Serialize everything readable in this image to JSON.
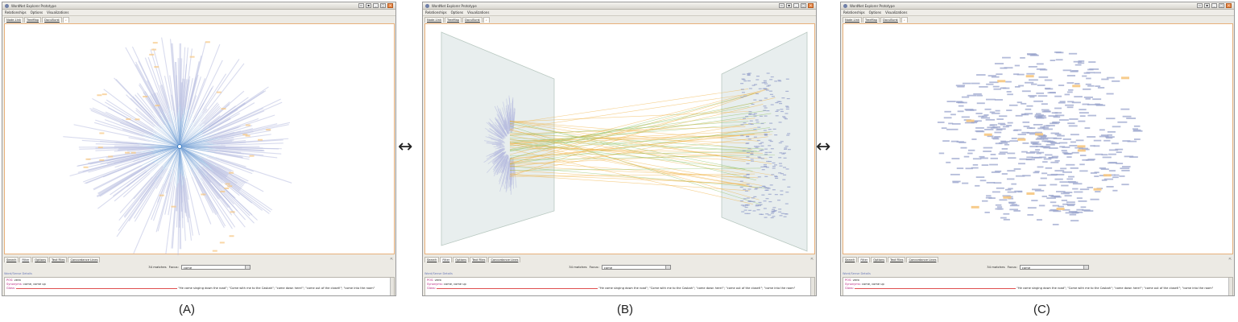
{
  "app_title": "WordNet Explorer Prototype",
  "menu": [
    "Relationships",
    "Options",
    "Visualizations"
  ],
  "view_tabs": [
    "Node-Link",
    "TreeMap",
    "DocuBurst"
  ],
  "bottom_tabs": [
    "Search",
    "Filter",
    "Options",
    "Text Files",
    "Concordance Lines"
  ],
  "filter": {
    "matches_text": "34 matches",
    "focus_label": "Focus:",
    "focus_value": "come"
  },
  "details_header": "Word/Sense Details",
  "details": {
    "pos_key": "POS:",
    "pos_val": "verb",
    "syn_key": "Synonyms:",
    "syn_val": "come, come up",
    "gloss_key": "Gloss:",
    "gloss_val": "\"He came singing down the road\"; \"Come with me to the Casbah\"; \"come down here!\"; \"come out of the closet!\"; \"come into the room\""
  },
  "transition_arrow": "↔",
  "captions": [
    "(A)",
    "(B)",
    "(C)"
  ],
  "colors": {
    "tree_edge": "#7fa8d8",
    "tree_label": "#b8bde0",
    "link_orange": "#f0b040",
    "link_green": "#8cc060",
    "plane_fill": "#d6e0e0",
    "highlight": "#f6c680",
    "canvas_border": "#e8b07a"
  }
}
